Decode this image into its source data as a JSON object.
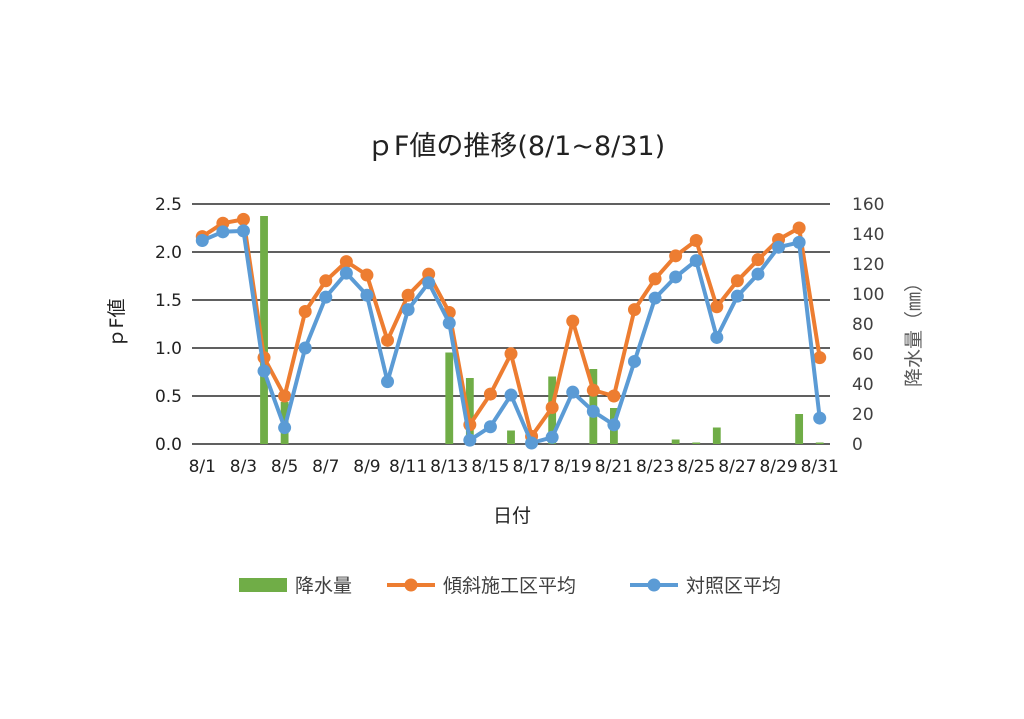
{
  "chart_data": {
    "type": "bar+line",
    "title": "ｐF値の推移(8/1~8/31)",
    "xlabel": "日付",
    "ylabel_left": "ｐF値",
    "ylabel_right": "降水量（㎜）",
    "ylim_left": [
      0,
      2.5
    ],
    "yticks_left": [
      "0.0",
      "0.5",
      "1.0",
      "1.5",
      "2.0",
      "2.5"
    ],
    "ylim_right": [
      0,
      160
    ],
    "yticks_right": [
      "0",
      "20",
      "40",
      "60",
      "80",
      "100",
      "120",
      "140",
      "160"
    ],
    "grid": "horizontal",
    "legend_position": "bottom",
    "x_tick_labels": [
      "8/1",
      "8/3",
      "8/5",
      "8/7",
      "8/9",
      "8/11",
      "8/13",
      "8/15",
      "8/17",
      "8/19",
      "8/21",
      "8/23",
      "8/25",
      "8/27",
      "8/29",
      "8/31"
    ],
    "categories": [
      "8/1",
      "8/2",
      "8/3",
      "8/4",
      "8/5",
      "8/6",
      "8/7",
      "8/8",
      "8/9",
      "8/10",
      "8/11",
      "8/12",
      "8/13",
      "8/14",
      "8/15",
      "8/16",
      "8/17",
      "8/18",
      "8/19",
      "8/20",
      "8/21",
      "8/22",
      "8/23",
      "8/24",
      "8/25",
      "8/26",
      "8/27",
      "8/28",
      "8/29",
      "8/30",
      "8/31"
    ],
    "series": [
      {
        "name": "降水量",
        "type": "bar",
        "axis": "right",
        "color": "#70ad47",
        "values": [
          0,
          0,
          0,
          152,
          28,
          0,
          0,
          0,
          0,
          0,
          0,
          0,
          61,
          44,
          0,
          9,
          0,
          45,
          0,
          50,
          24,
          0,
          0,
          3,
          1,
          11,
          0,
          0,
          0,
          20,
          1
        ]
      },
      {
        "name": "傾斜施工区平均",
        "type": "line",
        "axis": "left",
        "color": "#ed7d31",
        "values": [
          2.16,
          2.3,
          2.34,
          0.9,
          0.5,
          1.38,
          1.7,
          1.9,
          1.76,
          1.08,
          1.55,
          1.77,
          1.37,
          0.2,
          0.52,
          0.94,
          0.08,
          0.38,
          1.28,
          0.56,
          0.5,
          1.4,
          1.72,
          1.96,
          2.12,
          1.43,
          1.7,
          1.92,
          2.13,
          2.25,
          0.9
        ]
      },
      {
        "name": "対照区平均",
        "type": "line",
        "axis": "left",
        "color": "#5b9bd5",
        "values": [
          2.12,
          2.21,
          2.22,
          0.76,
          0.17,
          1.0,
          1.53,
          1.78,
          1.55,
          0.65,
          1.4,
          1.68,
          1.26,
          0.04,
          0.18,
          0.51,
          0.01,
          0.07,
          0.54,
          0.34,
          0.2,
          0.86,
          1.52,
          1.74,
          1.91,
          1.11,
          1.54,
          1.77,
          2.05,
          2.1,
          0.27
        ]
      }
    ]
  }
}
